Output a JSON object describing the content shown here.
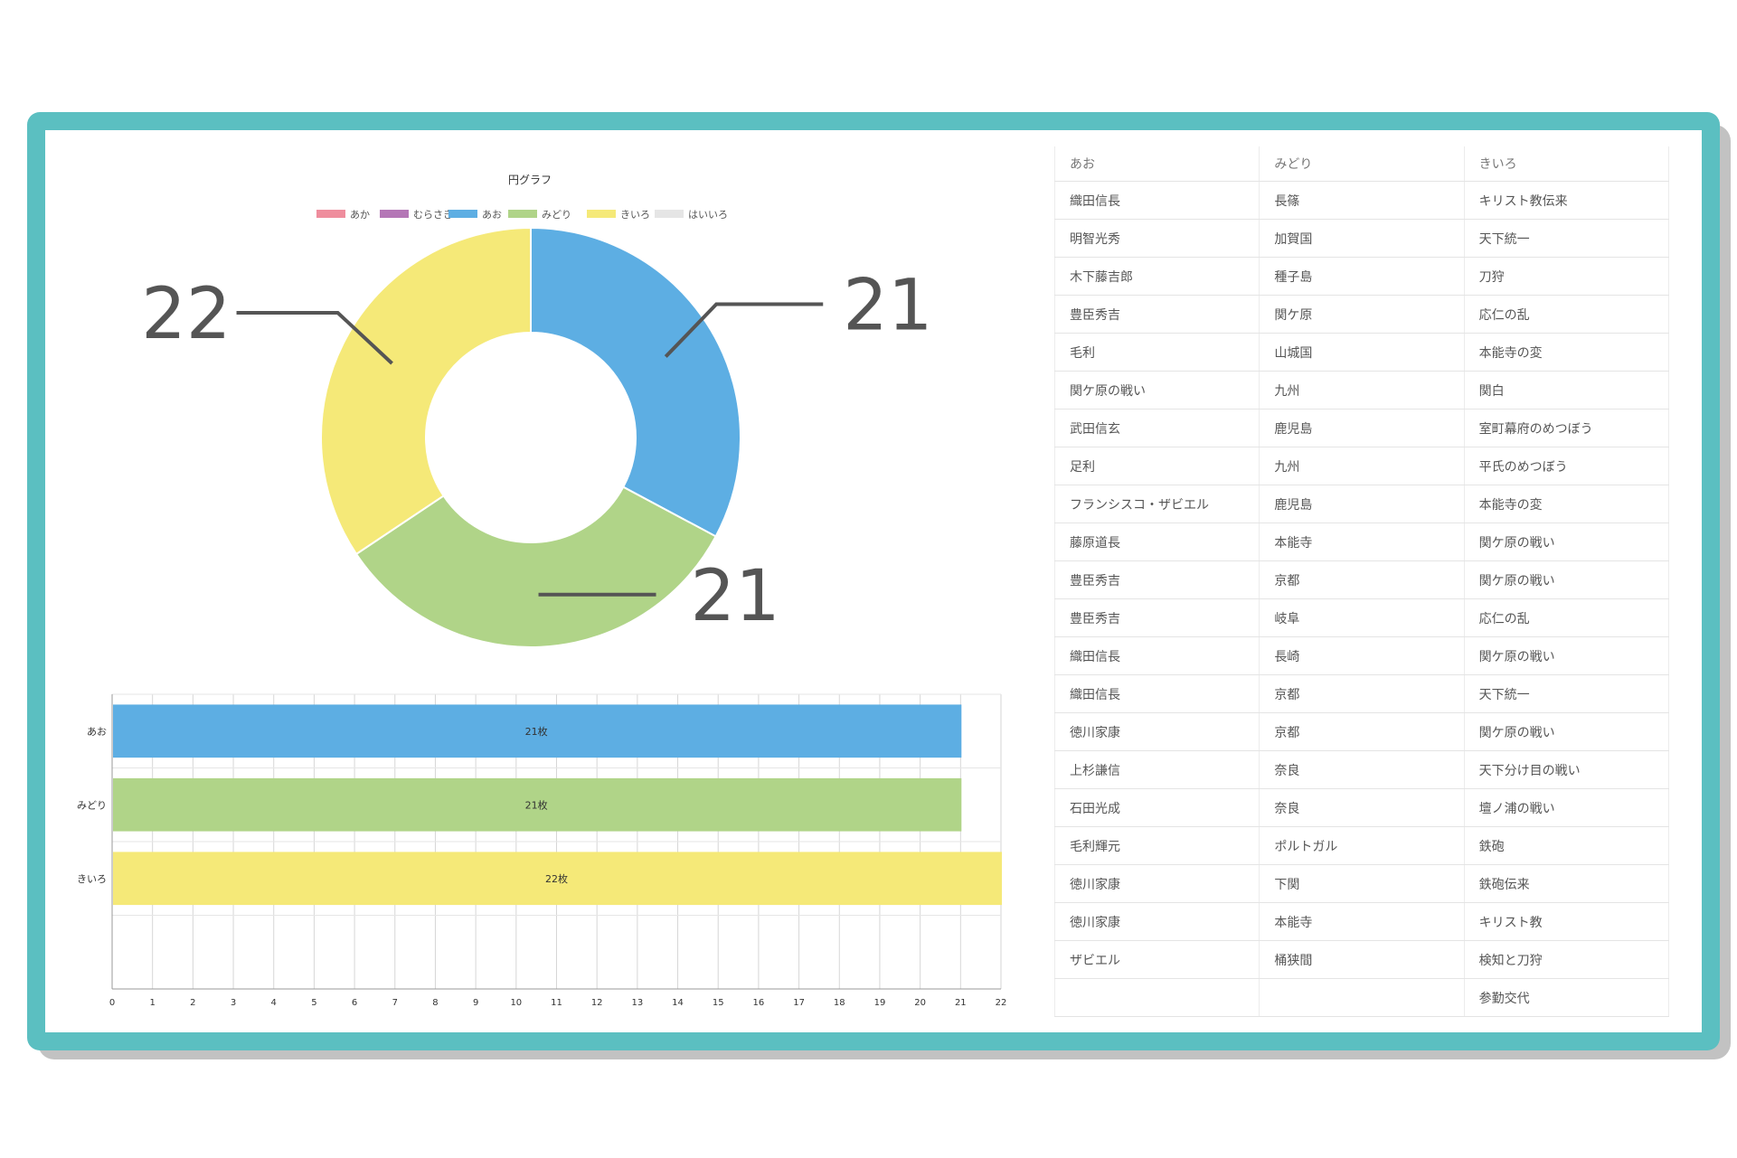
{
  "colors": {
    "frame": "#5bbfc1",
    "aka": "#ef8d9d",
    "murasaki": "#b476b6",
    "ao": "#5daee3",
    "midori": "#b0d488",
    "kiiro": "#f5e978",
    "haiiro": "#e5e5e5",
    "callout": "#555555"
  },
  "chart_data": [
    {
      "type": "pie",
      "title": "円グラフ",
      "legend_position": "top",
      "categories": [
        "あか",
        "むらさき",
        "あお",
        "みどり",
        "きいろ",
        "はいいろ"
      ],
      "values": [
        0,
        0,
        21,
        21,
        22,
        0
      ],
      "callouts": [
        {
          "category": "あお",
          "text": "21"
        },
        {
          "category": "みどり",
          "text": "21"
        },
        {
          "category": "きいろ",
          "text": "22"
        }
      ]
    },
    {
      "type": "bar",
      "orientation": "horizontal",
      "categories": [
        "あお",
        "みどり",
        "きいろ"
      ],
      "values": [
        21,
        21,
        22
      ],
      "data_labels": [
        "21枚",
        "21枚",
        "22枚"
      ],
      "xlim": [
        0,
        22
      ],
      "xticks": [
        "0",
        "1",
        "2",
        "3",
        "4",
        "5",
        "6",
        "7",
        "8",
        "9",
        "10",
        "11",
        "12",
        "13",
        "14",
        "15",
        "16",
        "17",
        "18",
        "19",
        "20",
        "21",
        "22"
      ],
      "grid": true
    }
  ],
  "table": {
    "headers": [
      "あお",
      "みどり",
      "きいろ"
    ],
    "rows": [
      [
        "織田信長",
        "長篠",
        "キリスト教伝来"
      ],
      [
        "明智光秀",
        "加賀国",
        "天下統一"
      ],
      [
        "木下藤吉郎",
        "種子島",
        "刀狩"
      ],
      [
        "豊臣秀吉",
        "関ケ原",
        "応仁の乱"
      ],
      [
        "毛利",
        "山城国",
        "本能寺の変"
      ],
      [
        "関ケ原の戦い",
        "九州",
        "関白"
      ],
      [
        "武田信玄",
        "鹿児島",
        "室町幕府のめつぼう"
      ],
      [
        "足利",
        "九州",
        "平氏のめつぼう"
      ],
      [
        "フランシスコ・ザビエル",
        "鹿児島",
        "本能寺の変"
      ],
      [
        "藤原道長",
        "本能寺",
        "関ケ原の戦い"
      ],
      [
        "豊臣秀吉",
        "京都",
        "関ケ原の戦い"
      ],
      [
        "豊臣秀吉",
        "岐阜",
        "応仁の乱"
      ],
      [
        "織田信長",
        "長崎",
        "関ケ原の戦い"
      ],
      [
        "織田信長",
        "京都",
        "天下統一"
      ],
      [
        "徳川家康",
        "京都",
        "関ケ原の戦い"
      ],
      [
        "上杉謙信",
        "奈良",
        "天下分け目の戦い"
      ],
      [
        "石田光成",
        "奈良",
        "壇ノ浦の戦い"
      ],
      [
        "毛利輝元",
        "ポルトガル",
        "鉄砲"
      ],
      [
        "徳川家康",
        "下関",
        "鉄砲伝来"
      ],
      [
        "徳川家康",
        "本能寺",
        "キリスト教"
      ],
      [
        "ザビエル",
        "桶狭間",
        "検知と刀狩"
      ],
      [
        "",
        "",
        "参勤交代"
      ]
    ]
  }
}
